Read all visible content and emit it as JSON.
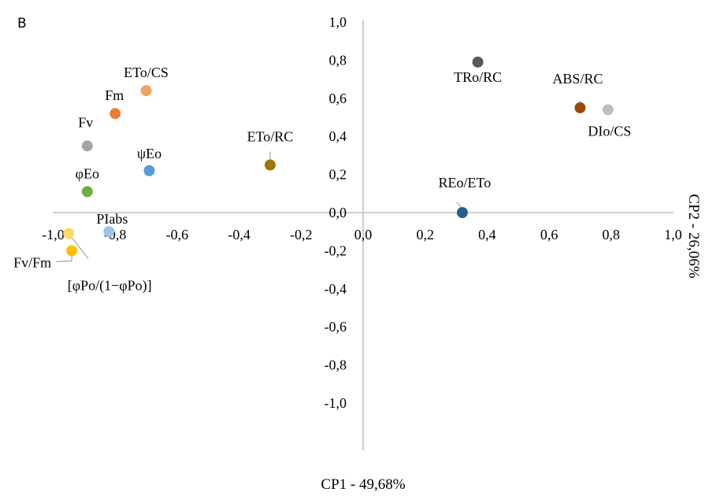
{
  "chart_data": {
    "type": "scatter",
    "panel_label": "B",
    "xlabel": "CP1 - 49,68%",
    "ylabel": "CP2 - 26,06%",
    "xlim": [
      -1.0,
      1.0
    ],
    "ylim": [
      -1.0,
      1.0
    ],
    "x_ticks": [
      "-1,0",
      "-0,8",
      "-0,6",
      "-0,4",
      "-0,2",
      "0,0",
      "0,2",
      "0,4",
      "0,6",
      "0,8",
      "1,0"
    ],
    "y_ticks": [
      "1,0",
      "0,8",
      "0,6",
      "0,4",
      "0,2",
      "0,0",
      "-0,2",
      "-0,4",
      "-0,6",
      "-0,8",
      "-1,0"
    ],
    "grid": false,
    "points": [
      {
        "label": "ETo/CS",
        "x": -0.7,
        "y": 0.64,
        "color": "#f4a460"
      },
      {
        "label": "Fm",
        "x": -0.8,
        "y": 0.52,
        "color": "#ed7d31"
      },
      {
        "label": "Fv",
        "x": -0.89,
        "y": 0.35,
        "color": "#a5a5a5"
      },
      {
        "label": "ψEo",
        "x": -0.69,
        "y": 0.22,
        "color": "#5b9bd5"
      },
      {
        "label": "φEo",
        "x": -0.89,
        "y": 0.11,
        "color": "#70ad47"
      },
      {
        "label": "PIabs",
        "x": -0.82,
        "y": -0.1,
        "color": "#9dc3e6"
      },
      {
        "label": "[φPo/(1−φPo)]",
        "x": -0.95,
        "y": -0.11,
        "color": "#ffd966"
      },
      {
        "label": "Fv/Fm",
        "x": -0.94,
        "y": -0.2,
        "color": "#ffc000"
      },
      {
        "label": "ETo/RC",
        "x": -0.3,
        "y": 0.25,
        "color": "#9c7a00"
      },
      {
        "label": "TRo/RC",
        "x": 0.37,
        "y": 0.79,
        "color": "#595959"
      },
      {
        "label": "ABS/RC",
        "x": 0.7,
        "y": 0.55,
        "color": "#9e480e"
      },
      {
        "label": "DIo/CS",
        "x": 0.79,
        "y": 0.54,
        "color": "#bfbfbf"
      },
      {
        "label": "REo/ETo",
        "x": 0.32,
        "y": 0.0,
        "color": "#255e91"
      }
    ]
  }
}
